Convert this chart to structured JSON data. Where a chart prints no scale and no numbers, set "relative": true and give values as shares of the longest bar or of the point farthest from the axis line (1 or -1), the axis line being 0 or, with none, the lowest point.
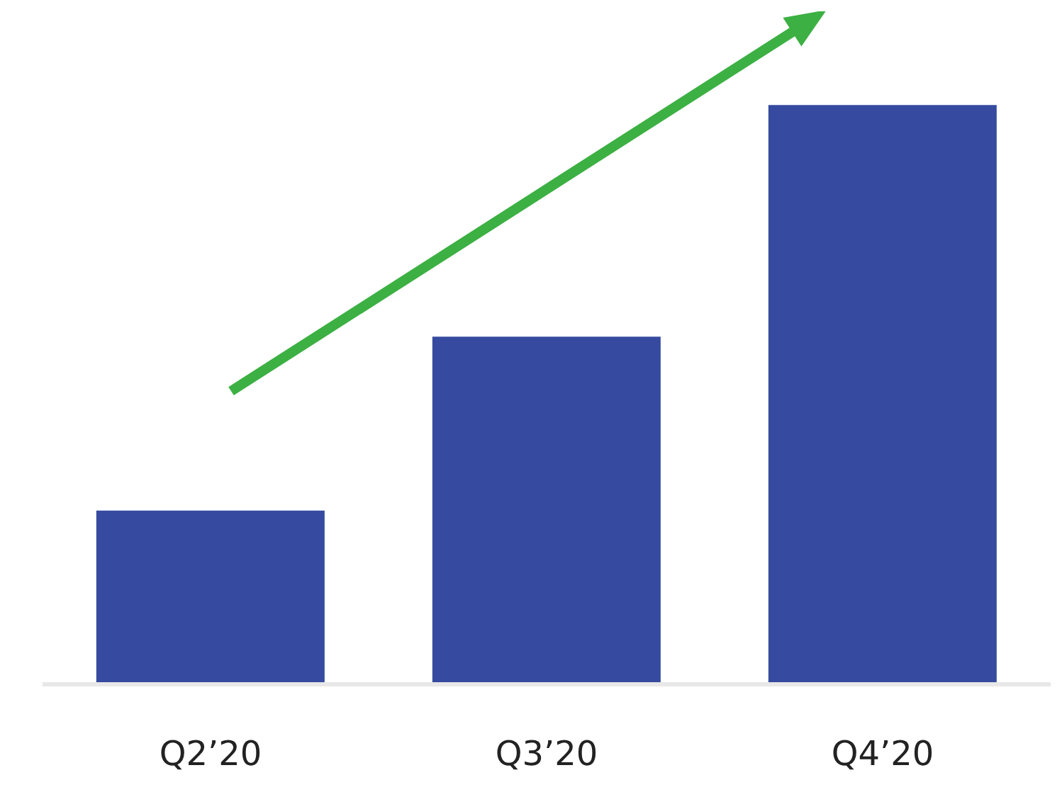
{
  "chart_data": {
    "type": "bar",
    "relative": true,
    "categories": [
      "Q2’20",
      "Q3’20",
      "Q4’20"
    ],
    "values": [
      0.3,
      0.6,
      1
    ],
    "color": "#364ba0"
  }
}
